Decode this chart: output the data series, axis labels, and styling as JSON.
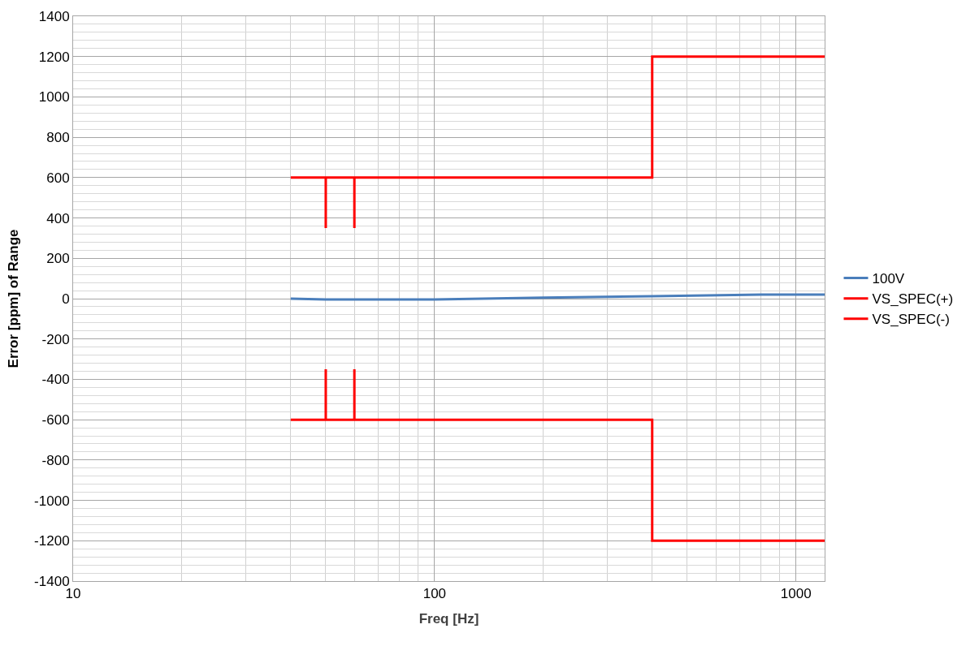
{
  "chart_data": {
    "type": "line",
    "xlabel": "Freq [Hz]",
    "ylabel": "Error [ppm] of Range",
    "log": "x",
    "xlim": [
      10,
      1200
    ],
    "xticks": [
      10,
      100,
      1000
    ],
    "ylim": [
      -1400,
      1400
    ],
    "yticks": [
      -1400,
      -1200,
      -1000,
      -800,
      -600,
      -400,
      -200,
      0,
      200,
      400,
      600,
      800,
      1000,
      1200,
      1400
    ],
    "grid": true,
    "legend": "right",
    "marker": "none",
    "line_style": "solid",
    "series": [
      {
        "name": "100V",
        "color": "#4a7ebb",
        "x": [
          40,
          50,
          70,
          100,
          200,
          400,
          800,
          1200
        ],
        "values": [
          0,
          -4,
          -4,
          -4,
          5,
          12,
          20,
          20
        ]
      },
      {
        "name": "VS_SPEC(+)",
        "color": "#ff0000",
        "x": [
          40,
          50,
          50,
          50,
          60,
          60,
          60,
          400,
          400,
          1200
        ],
        "values": [
          600,
          600,
          350,
          600,
          600,
          350,
          600,
          600,
          1200,
          1200
        ]
      },
      {
        "name": "VS_SPEC(-)",
        "color": "#ff0000",
        "x": [
          40,
          50,
          50,
          50,
          60,
          60,
          60,
          400,
          400,
          1200
        ],
        "values": [
          -600,
          -600,
          -350,
          -600,
          -600,
          -350,
          -600,
          -600,
          -1200,
          -1200
        ]
      }
    ]
  }
}
